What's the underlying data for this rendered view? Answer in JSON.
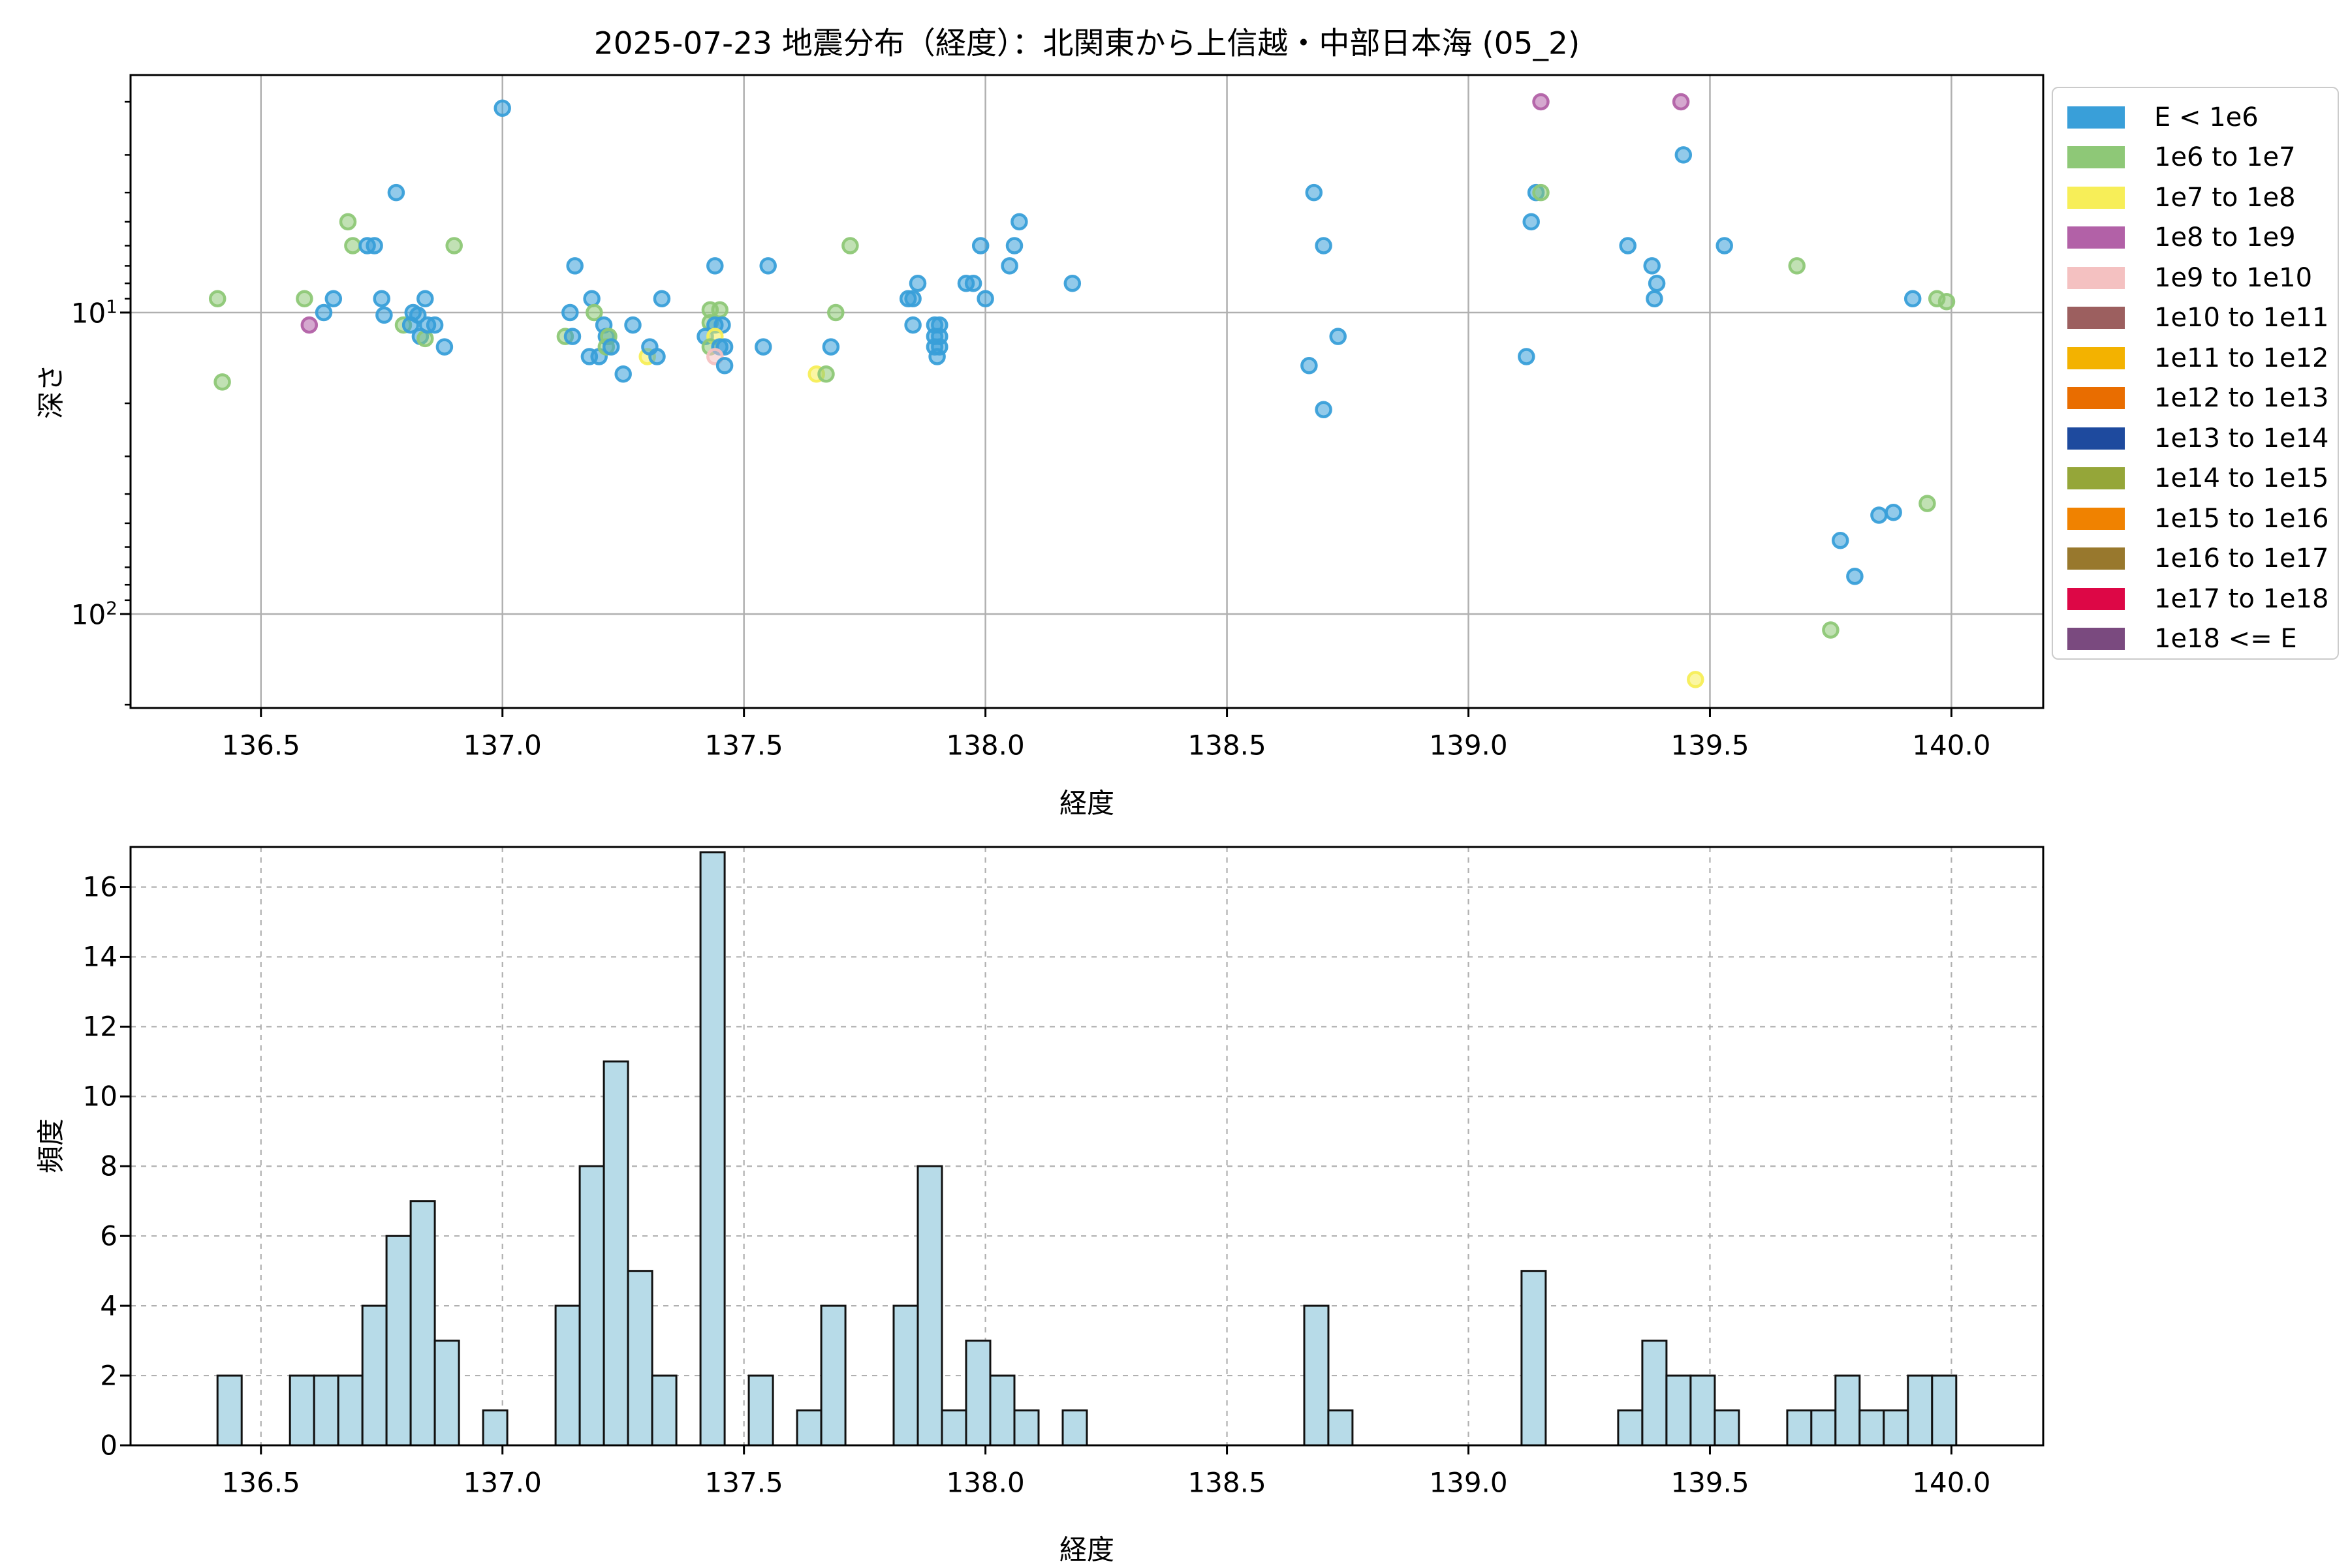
{
  "title": "2025-07-23 地震分布（経度）：北関東から上信越・中部日本海 (05_2)",
  "legend": {
    "items": [
      {
        "label": "E < 1e6",
        "color": "#399fd9"
      },
      {
        "label": "1e6 to 1e7",
        "color": "#8ec877"
      },
      {
        "label": "1e7 to 1e8",
        "color": "#f7ee58"
      },
      {
        "label": "1e8 to 1e9",
        "color": "#b261a7"
      },
      {
        "label": "1e9 to 1e10",
        "color": "#f4c1c1"
      },
      {
        "label": "1e10 to 1e11",
        "color": "#9c5f5f"
      },
      {
        "label": "1e11 to 1e12",
        "color": "#f3b200"
      },
      {
        "label": "1e12 to 1e13",
        "color": "#e96d00"
      },
      {
        "label": "1e13 to 1e14",
        "color": "#1e4a9e"
      },
      {
        "label": "1e14 to 1e15",
        "color": "#95a639"
      },
      {
        "label": "1e15 to 1e16",
        "color": "#f08200"
      },
      {
        "label": "1e16 to 1e17",
        "color": "#98782d"
      },
      {
        "label": "1e17 to 1e18",
        "color": "#dd0746"
      },
      {
        "label": "1e18 <= E",
        "color": "#7a4a7f"
      }
    ]
  },
  "colors": {
    "bar_fill": "#b7dbe8",
    "bar_edge": "#111111",
    "grid": "#b0b0b0",
    "spine": "#000000"
  },
  "chart_data": [
    {
      "type": "scatter",
      "title": "2025-07-23 地震分布（経度）：北関東から上信越・中部日本海 (05_2)",
      "xlabel": "経度",
      "ylabel": "深さ",
      "xlim": [
        136.23,
        140.19
      ],
      "ylim": [
        1.63,
        205
      ],
      "y_scale": "log",
      "y_inverted": true,
      "grid": true,
      "xticks": [
        {
          "v": 136.5,
          "label": "136.5"
        },
        {
          "v": 137.0,
          "label": "137.0"
        },
        {
          "v": 137.5,
          "label": "137.5"
        },
        {
          "v": 138.0,
          "label": "138.0"
        },
        {
          "v": 138.5,
          "label": "138.5"
        },
        {
          "v": 139.0,
          "label": "139.0"
        },
        {
          "v": 139.5,
          "label": "139.5"
        },
        {
          "v": 140.0,
          "label": "140.0"
        }
      ],
      "yticks": [
        {
          "v": 10,
          "base": "10",
          "exp": "1"
        },
        {
          "v": 100,
          "base": "10",
          "exp": "2"
        }
      ],
      "y_minor_ticks": [
        2,
        3,
        4,
        5,
        6,
        7,
        8,
        9,
        20,
        30,
        40,
        50,
        60,
        70,
        80,
        90,
        200
      ],
      "legend_position": "upper right",
      "series_key": [
        "E < 1e6",
        "1e6 to 1e7",
        "1e7 to 1e8",
        "1e8 to 1e9",
        "1e9 to 1e10"
      ],
      "points": [
        [
          136.41,
          9,
          1
        ],
        [
          136.42,
          17,
          1
        ],
        [
          136.59,
          9,
          1
        ],
        [
          136.6,
          11,
          3
        ],
        [
          136.63,
          10,
          0
        ],
        [
          136.65,
          9,
          0
        ],
        [
          136.68,
          5,
          1
        ],
        [
          136.69,
          6,
          1
        ],
        [
          136.72,
          6,
          0
        ],
        [
          136.735,
          6,
          0
        ],
        [
          136.75,
          9,
          0
        ],
        [
          136.755,
          10.2,
          0
        ],
        [
          136.78,
          4,
          0
        ],
        [
          136.795,
          11,
          1
        ],
        [
          136.81,
          11,
          0
        ],
        [
          136.815,
          10,
          0
        ],
        [
          136.825,
          10.2,
          0
        ],
        [
          136.83,
          12,
          0
        ],
        [
          136.84,
          12.2,
          1
        ],
        [
          136.84,
          9,
          0
        ],
        [
          136.845,
          11,
          0
        ],
        [
          136.86,
          11,
          0
        ],
        [
          136.88,
          13,
          0
        ],
        [
          136.9,
          6,
          1
        ],
        [
          137.0,
          2.1,
          0
        ],
        [
          137.15,
          7,
          0
        ],
        [
          137.14,
          10,
          0
        ],
        [
          137.13,
          12,
          1
        ],
        [
          137.145,
          12,
          0
        ],
        [
          137.185,
          9,
          0
        ],
        [
          137.19,
          10,
          1
        ],
        [
          137.18,
          14,
          0
        ],
        [
          137.2,
          14,
          0
        ],
        [
          137.21,
          11,
          0
        ],
        [
          137.215,
          12,
          0
        ],
        [
          137.22,
          12,
          1
        ],
        [
          137.215,
          13,
          1
        ],
        [
          137.225,
          13,
          0
        ],
        [
          137.25,
          16,
          0
        ],
        [
          137.27,
          11,
          0
        ],
        [
          137.3,
          14,
          2
        ],
        [
          137.305,
          13,
          0
        ],
        [
          137.32,
          14,
          0
        ],
        [
          137.33,
          9,
          0
        ],
        [
          137.44,
          7,
          0
        ],
        [
          137.43,
          9.8,
          1
        ],
        [
          137.45,
          9.8,
          1
        ],
        [
          137.43,
          10.8,
          1
        ],
        [
          137.44,
          11,
          0
        ],
        [
          137.455,
          11,
          0
        ],
        [
          137.42,
          12,
          0
        ],
        [
          137.44,
          12,
          2
        ],
        [
          137.43,
          13,
          1
        ],
        [
          137.45,
          13,
          0
        ],
        [
          137.46,
          13,
          0
        ],
        [
          137.44,
          14,
          4
        ],
        [
          137.46,
          15,
          0
        ],
        [
          137.55,
          7,
          0
        ],
        [
          137.54,
          13,
          0
        ],
        [
          137.65,
          16,
          2
        ],
        [
          137.67,
          16,
          1
        ],
        [
          137.68,
          13,
          0
        ],
        [
          137.69,
          10,
          1
        ],
        [
          137.72,
          6,
          1
        ],
        [
          137.84,
          9,
          0
        ],
        [
          137.85,
          9,
          0
        ],
        [
          137.86,
          8,
          0
        ],
        [
          137.85,
          11,
          0
        ],
        [
          137.895,
          11,
          0
        ],
        [
          137.905,
          11,
          0
        ],
        [
          137.895,
          12,
          0
        ],
        [
          137.905,
          12,
          0
        ],
        [
          137.895,
          13,
          0
        ],
        [
          137.905,
          13,
          0
        ],
        [
          137.9,
          14,
          0
        ],
        [
          137.96,
          8,
          0
        ],
        [
          137.975,
          8,
          0
        ],
        [
          137.99,
          6,
          0
        ],
        [
          138.0,
          9,
          0
        ],
        [
          138.05,
          7,
          0
        ],
        [
          138.06,
          6,
          0
        ],
        [
          138.07,
          5,
          0
        ],
        [
          138.18,
          8,
          0
        ],
        [
          138.68,
          4,
          0
        ],
        [
          138.7,
          6,
          0
        ],
        [
          138.67,
          15,
          0
        ],
        [
          138.7,
          21,
          0
        ],
        [
          138.73,
          12,
          0
        ],
        [
          139.15,
          2,
          3
        ],
        [
          139.14,
          4,
          0
        ],
        [
          139.15,
          4,
          1
        ],
        [
          139.13,
          5,
          0
        ],
        [
          139.12,
          14,
          0
        ],
        [
          139.33,
          6,
          0
        ],
        [
          139.38,
          7,
          0
        ],
        [
          139.39,
          8,
          0
        ],
        [
          139.385,
          9,
          0
        ],
        [
          139.44,
          2,
          3
        ],
        [
          139.445,
          3,
          0
        ],
        [
          139.53,
          6,
          0
        ],
        [
          139.68,
          7,
          1
        ],
        [
          139.47,
          165,
          2
        ],
        [
          139.75,
          113,
          1
        ],
        [
          139.77,
          57,
          0
        ],
        [
          139.8,
          75,
          0
        ],
        [
          139.85,
          47,
          0
        ],
        [
          139.88,
          46,
          0
        ],
        [
          139.95,
          43,
          1
        ],
        [
          139.92,
          9,
          0
        ],
        [
          139.97,
          9,
          1
        ],
        [
          139.99,
          9.2,
          1
        ]
      ]
    },
    {
      "type": "bar",
      "xlabel": "経度",
      "ylabel": "頻度",
      "xlim": [
        136.23,
        140.19
      ],
      "ylim": [
        0,
        17.15
      ],
      "grid": true,
      "grid_style": "dashed",
      "bin_start": 136.41,
      "bin_width": 0.05,
      "values": [
        2,
        0,
        0,
        2,
        2,
        2,
        4,
        6,
        7,
        3,
        0,
        1,
        0,
        0,
        4,
        8,
        11,
        5,
        2,
        0,
        17,
        0,
        2,
        0,
        1,
        4,
        0,
        0,
        4,
        8,
        1,
        3,
        2,
        1,
        0,
        1,
        0,
        0,
        0,
        0,
        0,
        0,
        0,
        0,
        0,
        4,
        1,
        0,
        0,
        0,
        0,
        0,
        0,
        0,
        5,
        0,
        0,
        0,
        1,
        3,
        2,
        2,
        1,
        0,
        0,
        1,
        1,
        2,
        1,
        1,
        2,
        2
      ],
      "xticks": [
        {
          "v": 136.5,
          "label": "136.5"
        },
        {
          "v": 137.0,
          "label": "137.0"
        },
        {
          "v": 137.5,
          "label": "137.5"
        },
        {
          "v": 138.0,
          "label": "138.0"
        },
        {
          "v": 138.5,
          "label": "138.5"
        },
        {
          "v": 139.0,
          "label": "139.0"
        },
        {
          "v": 139.5,
          "label": "139.5"
        },
        {
          "v": 140.0,
          "label": "140.0"
        }
      ],
      "yticks": [
        {
          "v": 0,
          "label": "0"
        },
        {
          "v": 2,
          "label": "2"
        },
        {
          "v": 4,
          "label": "4"
        },
        {
          "v": 6,
          "label": "6"
        },
        {
          "v": 8,
          "label": "8"
        },
        {
          "v": 10,
          "label": "10"
        },
        {
          "v": 12,
          "label": "12"
        },
        {
          "v": 14,
          "label": "14"
        },
        {
          "v": 16,
          "label": "16"
        }
      ]
    }
  ]
}
